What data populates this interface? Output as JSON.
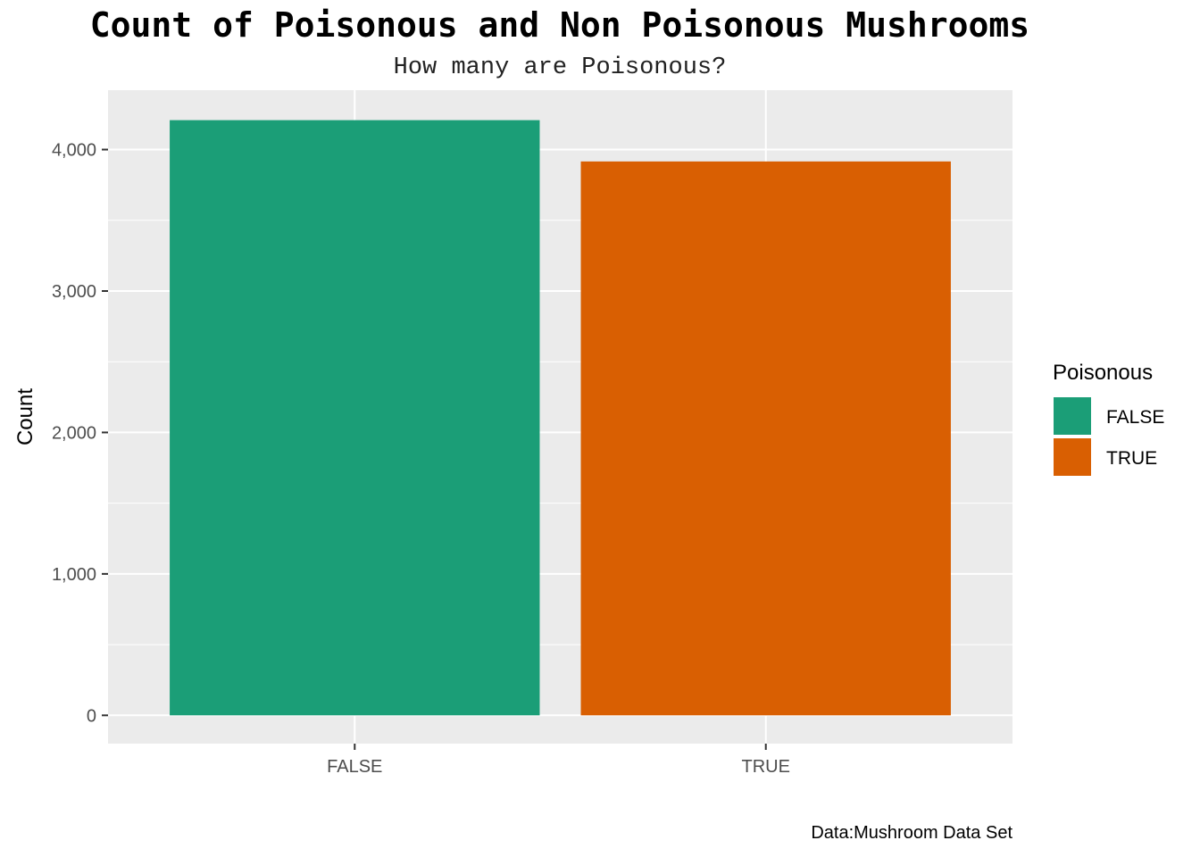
{
  "chart_data": {
    "type": "bar",
    "title": "Count of Poisonous and Non Poisonous Mushrooms",
    "subtitle": "How many are Poisonous?",
    "xlabel": "",
    "ylabel": "Count",
    "caption": "Data:Mushroom Data Set",
    "categories": [
      "FALSE",
      "TRUE"
    ],
    "values": [
      4208,
      3916
    ],
    "ylim": [
      -200,
      4420
    ],
    "y_ticks": [
      0,
      1000,
      2000,
      3000,
      4000
    ],
    "y_tick_labels": [
      "0",
      "1,000",
      "2,000",
      "3,000",
      "4,000"
    ],
    "grid": true,
    "legend": {
      "title": "Poisonous",
      "placement": "right",
      "items": [
        {
          "label": "FALSE",
          "color": "#1b9e77"
        },
        {
          "label": "TRUE",
          "color": "#d95f02"
        }
      ]
    },
    "colors": [
      "#1b9e77",
      "#d95f02"
    ],
    "panel_background": "#ebebeb",
    "grid_color": "#ffffff"
  }
}
